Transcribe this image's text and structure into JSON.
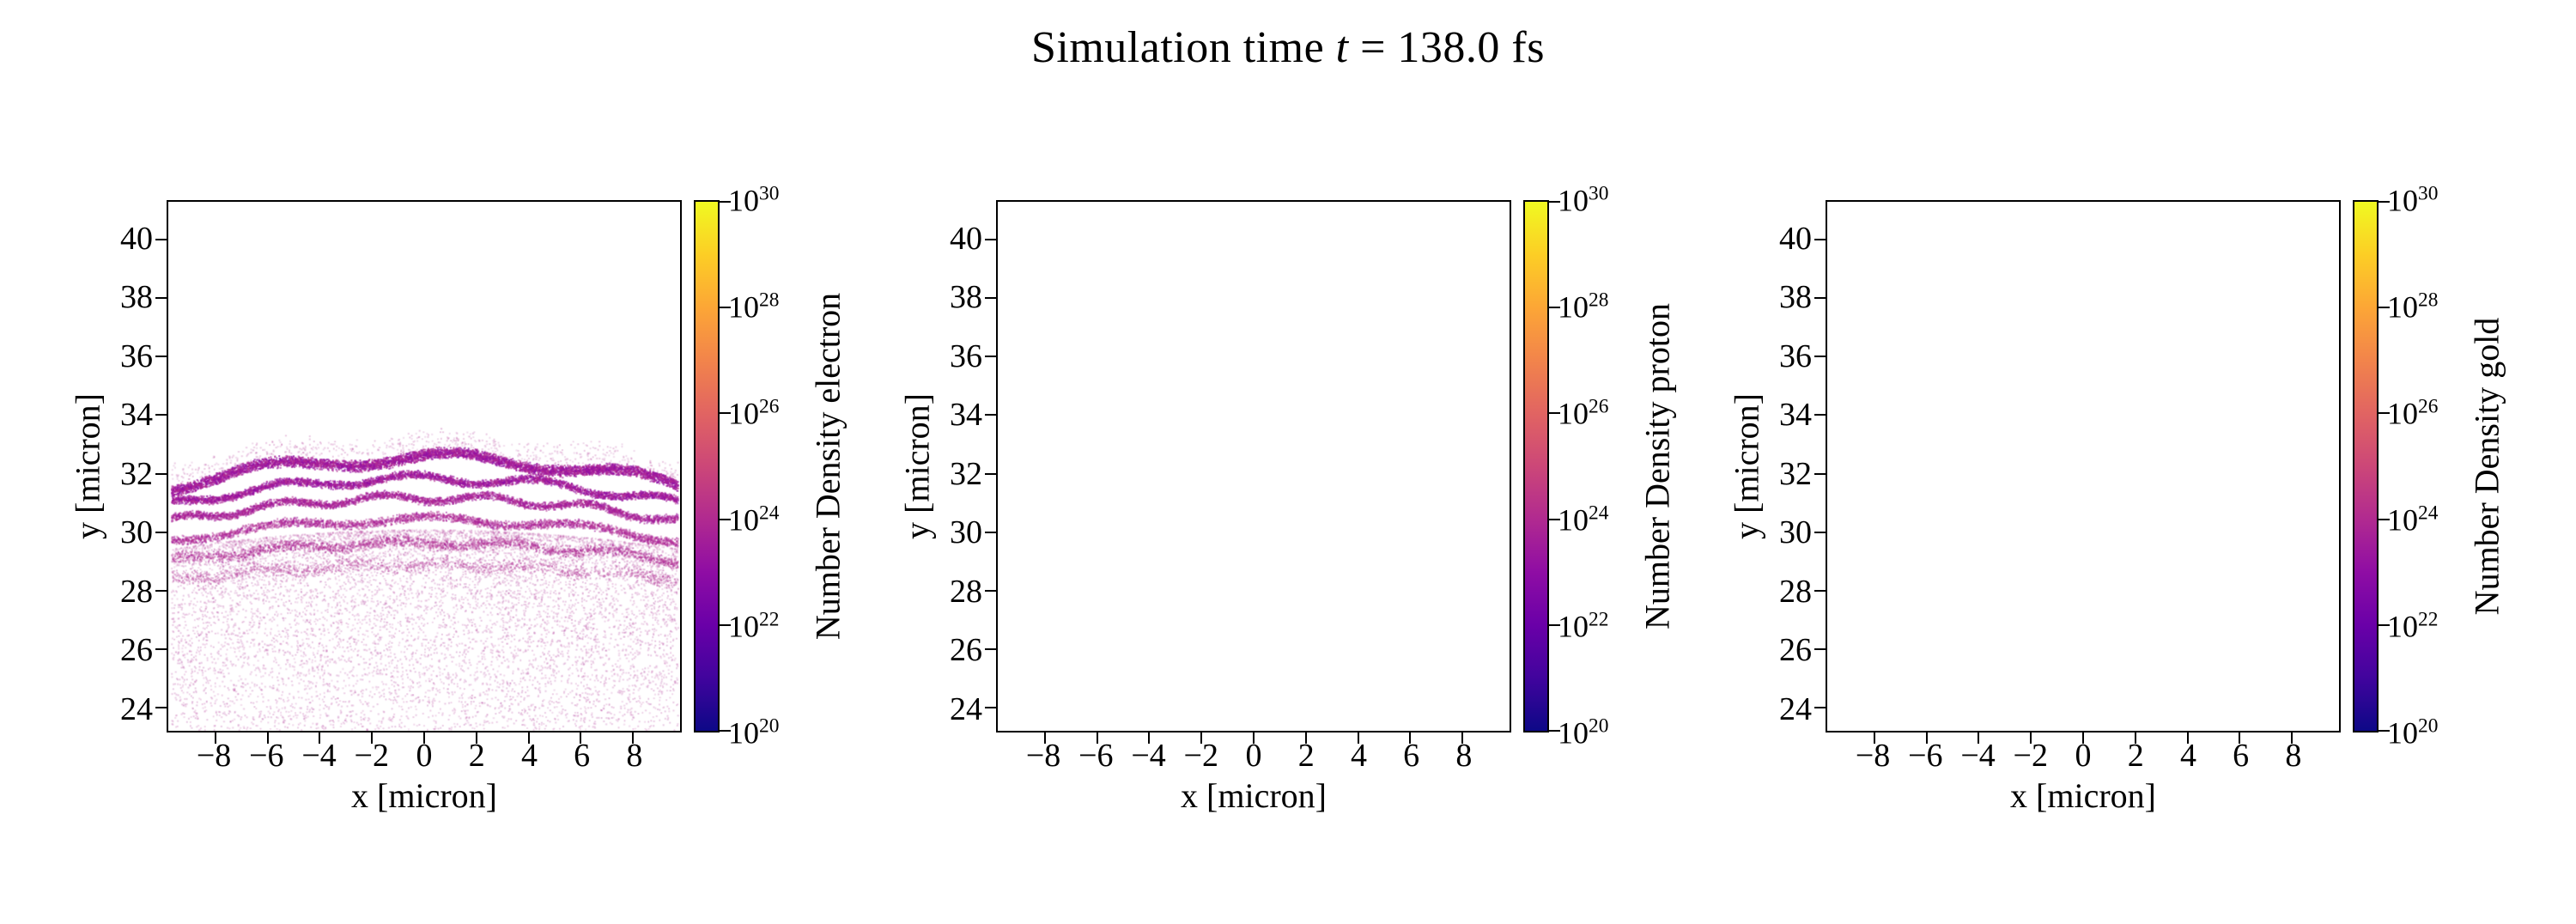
{
  "figure": {
    "title": {
      "prefix": "Simulation time ",
      "variable": "t",
      "suffix": " = 138.0 fs"
    }
  },
  "axes": {
    "xlabel": "x [micron]",
    "ylabel": "y [micron]",
    "x_tick_labels": [
      "−8",
      "−6",
      "−4",
      "−2",
      "0",
      "2",
      "4",
      "6",
      "8"
    ],
    "x_tick_values": [
      -8,
      -6,
      -4,
      -2,
      0,
      2,
      4,
      6,
      8
    ],
    "y_tick_labels": [
      "24",
      "26",
      "28",
      "30",
      "32",
      "34",
      "36",
      "38",
      "40"
    ],
    "y_tick_values": [
      24,
      26,
      28,
      30,
      32,
      34,
      36,
      38,
      40
    ],
    "xlim": [
      -9.8,
      9.8
    ],
    "ylim": [
      23.2,
      41.3
    ]
  },
  "colorbar": {
    "tick_base": "10",
    "tick_exponents": [
      "20",
      "22",
      "24",
      "26",
      "28",
      "30"
    ],
    "scale": "log",
    "colormap": "plasma",
    "stops": [
      "#0d0887",
      "#41049d",
      "#6a00a8",
      "#8f0da4",
      "#b12a90",
      "#cc4778",
      "#e16462",
      "#f2844b",
      "#fca636",
      "#fcce25",
      "#f0f921"
    ]
  },
  "panels": [
    {
      "id": "electron",
      "colorbar_label": "Number Density electron",
      "has_data": true
    },
    {
      "id": "proton",
      "colorbar_label": "Number Density proton",
      "has_data": false
    },
    {
      "id": "gold",
      "colorbar_label": "Number Density gold",
      "has_data": false
    }
  ],
  "chart_data": [
    {
      "type": "scatter",
      "species": "electron",
      "title": "Number Density electron",
      "xlabel": "x [micron]",
      "ylabel": "y [micron]",
      "xlim": [
        -9.8,
        9.8
      ],
      "ylim": [
        23.2,
        41.3
      ],
      "x_ticks": [
        -8,
        -6,
        -4,
        -2,
        0,
        2,
        4,
        6,
        8
      ],
      "y_ticks": [
        24,
        26,
        28,
        30,
        32,
        34,
        36,
        38,
        40
      ],
      "colorbar": {
        "label": "Number Density electron",
        "scale": "log",
        "min": 1e+20,
        "max": 1e+30,
        "ticks": [
          1e+20,
          1e+22,
          1e+24,
          1e+26,
          1e+28,
          1e+30
        ],
        "colormap": "plasma"
      },
      "content": "Speckled electron density: several thin arc-shaped bands stacked between y~28.3 and y~32.6, peaking near x~0-2 and falling to y~30 at the edges, at densities ~1e23-1e25 (magenta/purple region of plasma colormap); diffuse sparse scatter below the arcs down to y~23.3; empty white above y~33.",
      "bands": [
        {
          "y0": 31.55,
          "amp": 1.0,
          "wave": 0.2,
          "freq": 0.9,
          "phase": 0.6,
          "thick": 0.22,
          "count": 5200,
          "size": 2,
          "alpha": 0.7,
          "colors": [
            "#8f0da4",
            "#a21a9b",
            "#b02a90"
          ]
        },
        {
          "y0": 30.95,
          "amp": 0.9,
          "wave": 0.15,
          "freq": 1.3,
          "phase": 2.2,
          "thick": 0.16,
          "count": 3800,
          "size": 2,
          "alpha": 0.65,
          "colors": [
            "#8f0da4",
            "#a21a9b",
            "#b02a90"
          ]
        },
        {
          "y0": 30.35,
          "amp": 0.85,
          "wave": 0.13,
          "freq": 1.6,
          "phase": 4.1,
          "thick": 0.16,
          "count": 3300,
          "size": 2,
          "alpha": 0.6,
          "colors": [
            "#9c179e",
            "#a92397",
            "#b12a90"
          ]
        },
        {
          "y0": 29.7,
          "amp": 0.75,
          "wave": 0.12,
          "freq": 1.1,
          "phase": 1.3,
          "thick": 0.18,
          "count": 2700,
          "size": 2,
          "alpha": 0.55,
          "colors": [
            "#a21a9b",
            "#b02a90",
            "#ba3f9c"
          ]
        },
        {
          "y0": 29.0,
          "amp": 0.65,
          "wave": 0.1,
          "freq": 1.5,
          "phase": 3.2,
          "thick": 0.22,
          "count": 2000,
          "size": 2,
          "alpha": 0.5,
          "colors": [
            "#b02a90",
            "#c04ba0",
            "#a62098"
          ]
        },
        {
          "y0": 28.35,
          "amp": 0.55,
          "wave": 0.1,
          "freq": 1.8,
          "phase": 0.4,
          "thick": 0.28,
          "count": 1300,
          "size": 2,
          "alpha": 0.4,
          "colors": [
            "#c05aa8",
            "#b53b9b"
          ]
        }
      ],
      "halo": {
        "y0": 32.0,
        "amp": 1.0,
        "wave": 0.15,
        "freq": 1.0,
        "phase": 0.9,
        "thick": 0.5,
        "count": 700,
        "size": 2,
        "alpha": 0.25,
        "colors": [
          "#b02a90",
          "#c46ab3"
        ]
      },
      "diffuse": {
        "y_top": 29.4,
        "arc": 0.7,
        "y_bottom": 23.25,
        "bias": 1.6,
        "count": 8500,
        "size": 2,
        "alpha": 0.28,
        "colors": [
          "#bb4da2",
          "#c86fb5",
          "#ad3d9a"
        ]
      }
    },
    {
      "type": "scatter",
      "species": "proton",
      "title": "Number Density proton",
      "xlabel": "x [micron]",
      "ylabel": "y [micron]",
      "xlim": [
        -9.8,
        9.8
      ],
      "ylim": [
        23.2,
        41.3
      ],
      "x_ticks": [
        -8,
        -6,
        -4,
        -2,
        0,
        2,
        4,
        6,
        8
      ],
      "y_ticks": [
        24,
        26,
        28,
        30,
        32,
        34,
        36,
        38,
        40
      ],
      "colorbar": {
        "label": "Number Density proton",
        "scale": "log",
        "min": 1e+20,
        "max": 1e+30,
        "ticks": [
          1e+20,
          1e+22,
          1e+24,
          1e+26,
          1e+28,
          1e+30
        ],
        "colormap": "plasma"
      },
      "content": "Empty panel - no visible proton density.",
      "points": []
    },
    {
      "type": "scatter",
      "species": "gold",
      "title": "Number Density gold",
      "xlabel": "x [micron]",
      "ylabel": "y [micron]",
      "xlim": [
        -9.8,
        9.8
      ],
      "ylim": [
        23.2,
        41.3
      ],
      "x_ticks": [
        -8,
        -6,
        -4,
        -2,
        0,
        2,
        4,
        6,
        8
      ],
      "y_ticks": [
        24,
        26,
        28,
        30,
        32,
        34,
        36,
        38,
        40
      ],
      "colorbar": {
        "label": "Number Density gold",
        "scale": "log",
        "min": 1e+20,
        "max": 1e+30,
        "ticks": [
          1e+20,
          1e+22,
          1e+24,
          1e+26,
          1e+28,
          1e+30
        ],
        "colormap": "plasma"
      },
      "content": "Empty panel - no visible gold density.",
      "points": []
    }
  ]
}
